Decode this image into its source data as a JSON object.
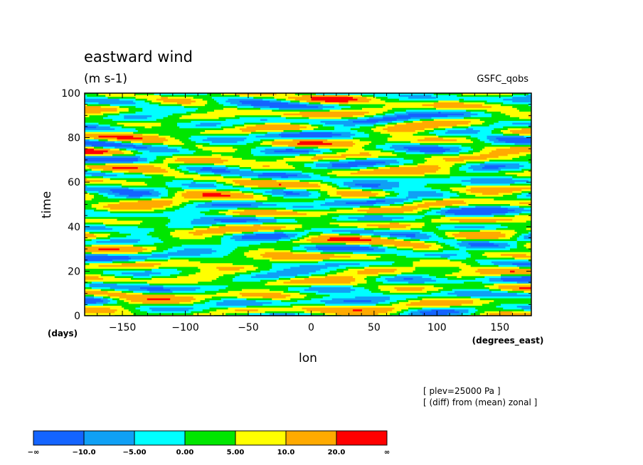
{
  "chart_data": {
    "type": "heatmap",
    "title": "eastward wind",
    "units": "(m s-1)",
    "source_label": "GSFC_qobs",
    "xlabel": "lon",
    "x_unit": "(degrees_east)",
    "ylabel": "time",
    "y_unit": "(days)",
    "xlim": [
      -180,
      175
    ],
    "ylim": [
      0,
      100
    ],
    "x_ticks": [
      -150,
      -100,
      -50,
      0,
      50,
      100,
      150
    ],
    "y_ticks": [
      0,
      20,
      40,
      60,
      80,
      100
    ],
    "notes": [
      "[ plev=25000 Pa ]",
      "[ (diff) from (mean) zonal ]"
    ],
    "colorbar": {
      "tick_labels": [
        "-∞",
        "-10.0",
        "-5.00",
        "0.00",
        "5.00",
        "10.0",
        "20.0",
        "∞"
      ],
      "bounds": [
        null,
        -10,
        -5,
        0,
        5,
        10,
        20,
        null
      ],
      "colors": [
        "#1464ff",
        "#0fa0f5",
        "#00ffff",
        "#00e600",
        "#ffff00",
        "#ffaa00",
        "#ff0000"
      ]
    },
    "highlights": [
      {
        "lon": 20,
        "time": 97.5,
        "value": 22
      },
      {
        "lon": -125,
        "time": 51,
        "value": 13
      },
      {
        "lon": -110,
        "time": 65,
        "value": 12
      },
      {
        "lon": -55,
        "time": 59,
        "value": 11
      },
      {
        "lon": -35,
        "time": 55,
        "value": 12
      },
      {
        "lon": 0,
        "time": 37,
        "value": 14
      },
      {
        "lon": 75,
        "time": 83,
        "value": 12
      },
      {
        "lon": 70,
        "time": 42,
        "value": 12
      },
      {
        "lon": 105,
        "time": 67,
        "value": 11
      },
      {
        "lon": -65,
        "time": 22,
        "value": 12
      },
      {
        "lon": -100,
        "time": 10,
        "value": 12
      },
      {
        "lon": 45,
        "time": 25,
        "value": 11
      },
      {
        "lon": 0,
        "time": 4,
        "value": 11
      },
      {
        "lon": -155,
        "time": 5,
        "value": 11
      },
      {
        "lon": 140,
        "time": 3,
        "value": 11
      },
      {
        "lon": 110,
        "time": 18,
        "value": 11
      },
      {
        "lon": -160,
        "time": 90,
        "value": 10
      },
      {
        "lon": -140,
        "time": 78,
        "value": 9
      },
      {
        "lon": 100,
        "time": 92,
        "value": 9
      },
      {
        "lon": 160,
        "time": 50,
        "value": 9
      },
      {
        "lon": 5,
        "time": 72,
        "value": 8
      },
      {
        "lon": 150,
        "time": 30,
        "value": 8
      },
      {
        "lon": -20,
        "time": 15,
        "value": 8
      }
    ],
    "lows": [
      {
        "lon": -20,
        "time": 64,
        "value": -9
      },
      {
        "lon": 70,
        "time": 52,
        "value": -9
      },
      {
        "lon": 40,
        "time": 58,
        "value": -8
      },
      {
        "lon": 130,
        "time": 45,
        "value": -8
      },
      {
        "lon": -140,
        "time": 97,
        "value": -8
      },
      {
        "lon": -90,
        "time": 40,
        "value": -7
      },
      {
        "lon": -150,
        "time": 60,
        "value": -7
      },
      {
        "lon": 150,
        "time": 80,
        "value": -7
      },
      {
        "lon": -50,
        "time": 32,
        "value": -6
      },
      {
        "lon": 0,
        "time": 8,
        "value": -6
      },
      {
        "lon": 120,
        "time": 10,
        "value": -7
      },
      {
        "lon": 110,
        "time": 27,
        "value": -6
      },
      {
        "lon": -10,
        "time": 48,
        "value": -6
      },
      {
        "lon": 140,
        "time": 62,
        "value": -6
      },
      {
        "lon": -120,
        "time": 27,
        "value": -6
      },
      {
        "lon": 60,
        "time": 88,
        "value": -6
      }
    ]
  }
}
